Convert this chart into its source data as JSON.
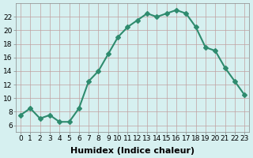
{
  "x": [
    0,
    1,
    2,
    3,
    4,
    5,
    6,
    7,
    8,
    9,
    10,
    11,
    12,
    13,
    14,
    15,
    16,
    17,
    18,
    19,
    20,
    21,
    22,
    23
  ],
  "y": [
    7.5,
    8.5,
    7.0,
    7.5,
    6.5,
    6.5,
    8.5,
    12.5,
    14.0,
    16.5,
    19.0,
    20.5,
    21.5,
    22.5,
    22.0,
    22.5,
    23.0,
    22.5,
    20.5,
    17.5,
    17.0,
    14.5,
    12.5,
    10.5
  ],
  "xlabel": "Humidex (Indice chaleur)",
  "ylabel": "",
  "line_color": "#2e8b6e",
  "marker": "D",
  "marker_size": 3,
  "bg_color": "#d6f0f0",
  "grid_color": "#c0a0a0",
  "xlim": [
    -0.5,
    23.5
  ],
  "ylim": [
    5,
    24
  ],
  "yticks": [
    6,
    8,
    10,
    12,
    14,
    16,
    18,
    20,
    22
  ],
  "xticks": [
    0,
    1,
    2,
    3,
    4,
    5,
    6,
    7,
    8,
    9,
    10,
    11,
    12,
    13,
    14,
    15,
    16,
    17,
    18,
    19,
    20,
    21,
    22,
    23
  ],
  "xtick_labels": [
    "0",
    "1",
    "2",
    "3",
    "4",
    "5",
    "6",
    "7",
    "8",
    "9",
    "10",
    "11",
    "12",
    "13",
    "14",
    "15",
    "16",
    "17",
    "18",
    "19",
    "20",
    "21",
    "22",
    "23"
  ],
  "linewidth": 1.5,
  "title_fontsize": 7,
  "label_fontsize": 8,
  "tick_fontsize": 6.5
}
